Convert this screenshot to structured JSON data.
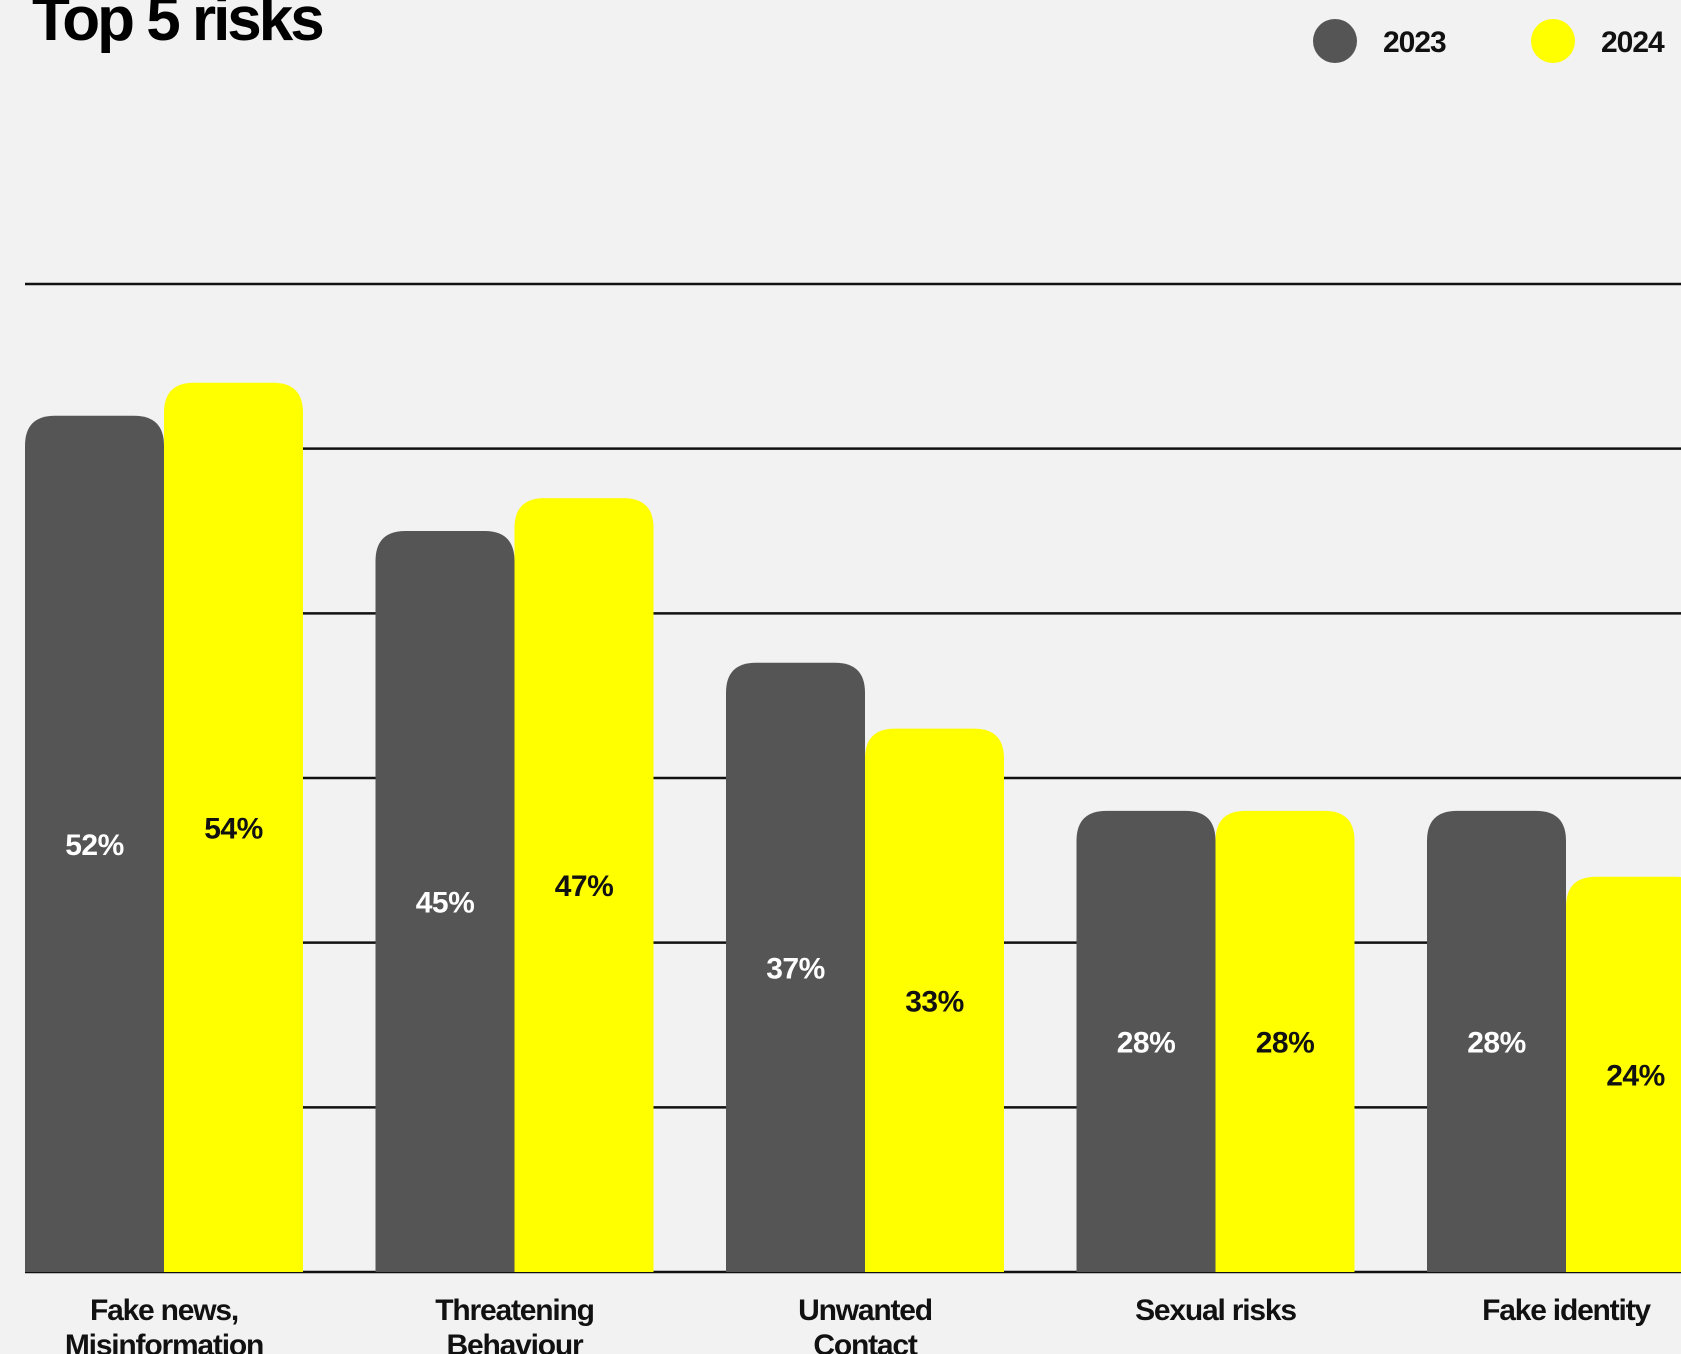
{
  "chart_data": {
    "type": "bar",
    "title": "Top 5 risks",
    "categories": [
      [
        "Fake news,",
        "Misinformation"
      ],
      [
        "Threatening",
        "Behaviour"
      ],
      [
        "Unwanted",
        "Contact"
      ],
      [
        "Sexual risks"
      ],
      [
        "Fake identity"
      ]
    ],
    "series": [
      {
        "name": "2023",
        "color": "#555555",
        "label_color": "#ffffff",
        "values": [
          52,
          45,
          37,
          28,
          28
        ],
        "labels": [
          "52%",
          "45%",
          "37%",
          "28%",
          "28%"
        ]
      },
      {
        "name": "2024",
        "color": "#ffff00",
        "label_color": "#111111",
        "values": [
          54,
          47,
          33,
          28,
          24
        ],
        "labels": [
          "54%",
          "47%",
          "33%",
          "28%",
          "24%"
        ]
      }
    ],
    "ylim": [
      0,
      60
    ],
    "grid": true,
    "legend_position": "top-right"
  }
}
